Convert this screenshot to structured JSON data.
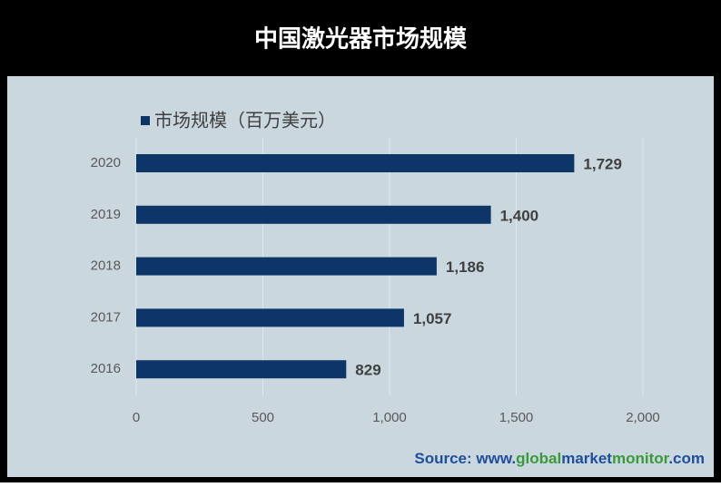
{
  "chart_data": {
    "type": "bar",
    "orientation": "horizontal",
    "title": "中国激光器市场规模",
    "categories": [
      "2020",
      "2019",
      "2018",
      "2017",
      "2016"
    ],
    "series": [
      {
        "name": "市场规模（百万美元）",
        "color": "#0e3567",
        "values": [
          1729,
          1400,
          1186,
          1057,
          829
        ],
        "value_labels": [
          "1,729",
          "1,400",
          "1,186",
          "1,057",
          "829"
        ]
      }
    ],
    "xlim": [
      0,
      2000
    ],
    "xticks": [
      0,
      500,
      {
        "value": 1000,
        "label": "1,000"
      },
      {
        "value": 1500,
        "label": "1,500"
      },
      {
        "value": 2000,
        "label": "2,000"
      }
    ],
    "grid": true,
    "legend": "top-left",
    "source": [
      "Source: www.",
      "global",
      "market",
      "monitor",
      ".com"
    ]
  }
}
